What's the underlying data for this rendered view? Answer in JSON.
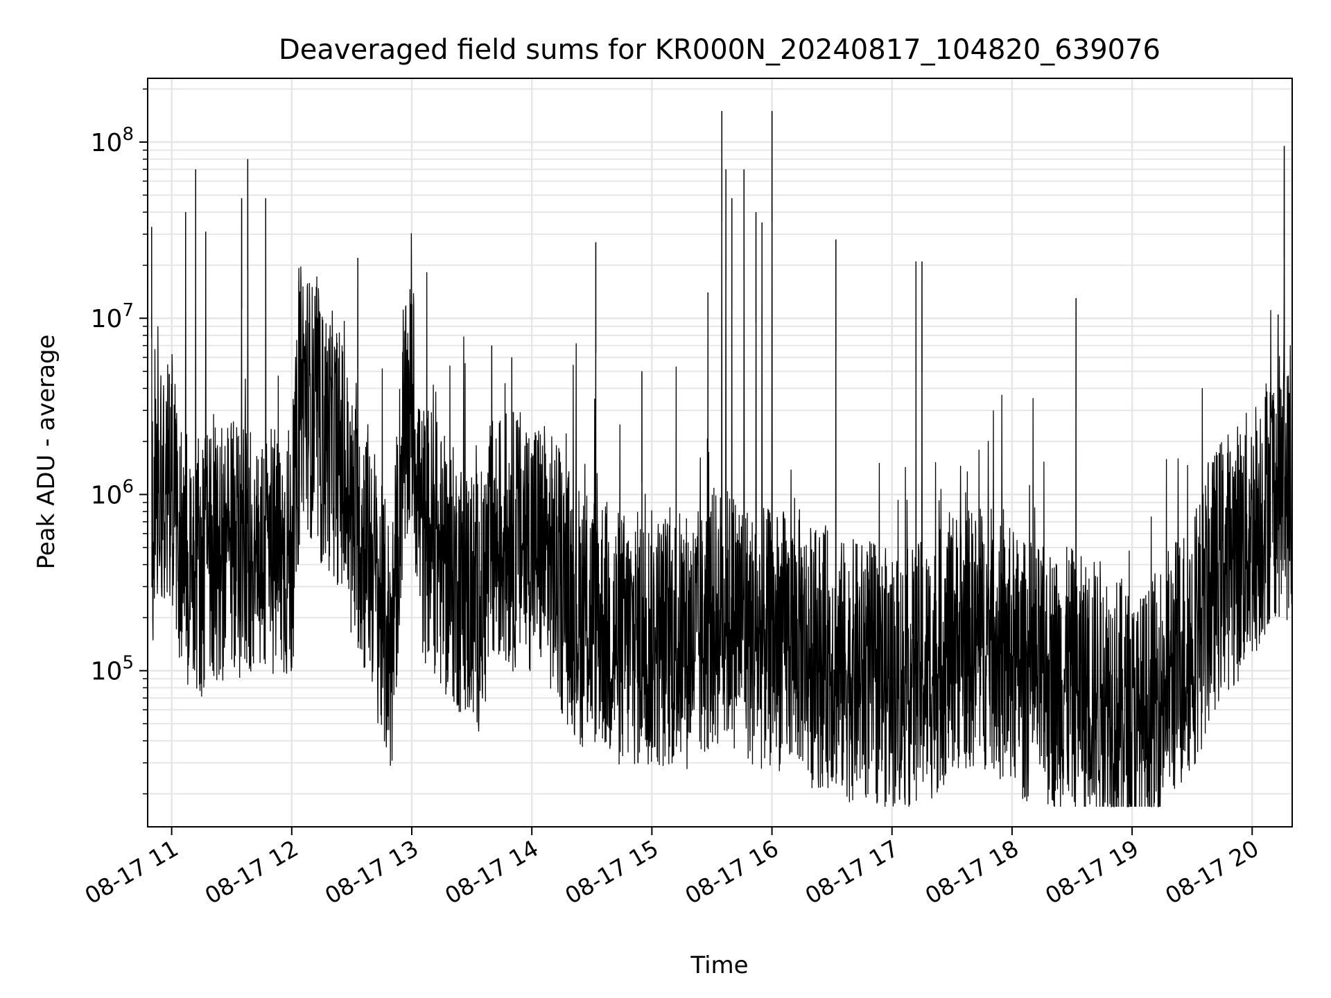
{
  "chart_data": {
    "type": "line",
    "title": "Deaveraged field sums for KR000N_20240817_104820_639076",
    "xlabel": "Time",
    "ylabel": "Peak ADU - average",
    "x_scale": "time",
    "y_scale": "log",
    "xlim": [
      "2024-08-17 10:48",
      "2024-08-17 20:20"
    ],
    "ylim": [
      13000,
      230000000
    ],
    "grid": true,
    "legend": "none",
    "x_ticks": [
      {
        "value": "2024-08-17 11:00",
        "label": "08-17 11"
      },
      {
        "value": "2024-08-17 12:00",
        "label": "08-17 12"
      },
      {
        "value": "2024-08-17 13:00",
        "label": "08-17 13"
      },
      {
        "value": "2024-08-17 14:00",
        "label": "08-17 14"
      },
      {
        "value": "2024-08-17 15:00",
        "label": "08-17 15"
      },
      {
        "value": "2024-08-17 16:00",
        "label": "08-17 16"
      },
      {
        "value": "2024-08-17 17:00",
        "label": "08-17 17"
      },
      {
        "value": "2024-08-17 18:00",
        "label": "08-17 18"
      },
      {
        "value": "2024-08-17 19:00",
        "label": "08-17 19"
      },
      {
        "value": "2024-08-17 20:00",
        "label": "08-17 20"
      }
    ],
    "y_ticks": [
      {
        "value": 100000,
        "base": "10",
        "exp": "5"
      },
      {
        "value": 1000000,
        "base": "10",
        "exp": "6"
      },
      {
        "value": 10000000,
        "base": "10",
        "exp": "7"
      },
      {
        "value": 100000000,
        "base": "10",
        "exp": "8"
      }
    ],
    "series": [
      {
        "color": "#000000",
        "x": [
          "2024-08-17 10:50",
          "2024-08-17 10:55",
          "2024-08-17 11:00",
          "2024-08-17 11:05",
          "2024-08-17 11:10",
          "2024-08-17 11:15",
          "2024-08-17 11:20",
          "2024-08-17 11:25",
          "2024-08-17 11:30",
          "2024-08-17 11:35",
          "2024-08-17 11:40",
          "2024-08-17 11:45",
          "2024-08-17 11:50",
          "2024-08-17 11:55",
          "2024-08-17 12:00",
          "2024-08-17 12:05",
          "2024-08-17 12:10",
          "2024-08-17 12:15",
          "2024-08-17 12:20",
          "2024-08-17 12:25",
          "2024-08-17 12:30",
          "2024-08-17 12:35",
          "2024-08-17 12:40",
          "2024-08-17 12:45",
          "2024-08-17 12:50",
          "2024-08-17 12:55",
          "2024-08-17 13:00",
          "2024-08-17 13:05",
          "2024-08-17 13:10",
          "2024-08-17 13:15",
          "2024-08-17 13:20",
          "2024-08-17 13:25",
          "2024-08-17 13:30",
          "2024-08-17 13:35",
          "2024-08-17 13:40",
          "2024-08-17 13:45",
          "2024-08-17 13:50",
          "2024-08-17 13:55",
          "2024-08-17 14:00",
          "2024-08-17 14:05",
          "2024-08-17 14:10",
          "2024-08-17 14:15",
          "2024-08-17 14:20",
          "2024-08-17 14:25",
          "2024-08-17 14:30",
          "2024-08-17 14:35",
          "2024-08-17 14:40",
          "2024-08-17 14:45",
          "2024-08-17 14:50",
          "2024-08-17 14:55",
          "2024-08-17 15:00",
          "2024-08-17 15:05",
          "2024-08-17 15:10",
          "2024-08-17 15:15",
          "2024-08-17 15:20",
          "2024-08-17 15:25",
          "2024-08-17 15:30",
          "2024-08-17 15:35",
          "2024-08-17 15:40",
          "2024-08-17 15:45",
          "2024-08-17 15:50",
          "2024-08-17 15:55",
          "2024-08-17 16:00",
          "2024-08-17 16:05",
          "2024-08-17 16:10",
          "2024-08-17 16:15",
          "2024-08-17 16:20",
          "2024-08-17 16:25",
          "2024-08-17 16:30",
          "2024-08-17 16:35",
          "2024-08-17 16:40",
          "2024-08-17 16:45",
          "2024-08-17 16:50",
          "2024-08-17 16:55",
          "2024-08-17 17:00",
          "2024-08-17 17:05",
          "2024-08-17 17:10",
          "2024-08-17 17:15",
          "2024-08-17 17:20",
          "2024-08-17 17:25",
          "2024-08-17 17:30",
          "2024-08-17 17:35",
          "2024-08-17 17:40",
          "2024-08-17 17:45",
          "2024-08-17 17:50",
          "2024-08-17 17:55",
          "2024-08-17 18:00",
          "2024-08-17 18:05",
          "2024-08-17 18:10",
          "2024-08-17 18:15",
          "2024-08-17 18:20",
          "2024-08-17 18:25",
          "2024-08-17 18:30",
          "2024-08-17 18:35",
          "2024-08-17 18:40",
          "2024-08-17 18:45",
          "2024-08-17 18:50",
          "2024-08-17 18:55",
          "2024-08-17 19:00",
          "2024-08-17 19:05",
          "2024-08-17 19:10",
          "2024-08-17 19:15",
          "2024-08-17 19:20",
          "2024-08-17 19:25",
          "2024-08-17 19:30",
          "2024-08-17 19:35",
          "2024-08-17 19:40",
          "2024-08-17 19:45",
          "2024-08-17 19:50",
          "2024-08-17 19:55",
          "2024-08-17 20:00",
          "2024-08-17 20:05",
          "2024-08-17 20:10",
          "2024-08-17 20:15",
          "2024-08-17 20:20"
        ],
        "y": [
          600000,
          1400000,
          1300000,
          500000,
          450000,
          400000,
          500000,
          450000,
          500000,
          500000,
          500000,
          450000,
          450000,
          450000,
          450000,
          4500000,
          3000000,
          2000000,
          2000000,
          1500000,
          700000,
          550000,
          450000,
          200000,
          130000,
          1500000,
          3500000,
          600000,
          600000,
          400000,
          350000,
          300000,
          250000,
          250000,
          500000,
          550000,
          550000,
          550000,
          550000,
          500000,
          400000,
          300000,
          250000,
          200000,
          200000,
          200000,
          150000,
          150000,
          150000,
          150000,
          150000,
          150000,
          150000,
          150000,
          150000,
          150000,
          200000,
          200000,
          200000,
          200000,
          150000,
          150000,
          150000,
          150000,
          150000,
          150000,
          120000,
          120000,
          120000,
          100000,
          100000,
          100000,
          100000,
          90000,
          90000,
          90000,
          90000,
          100000,
          100000,
          120000,
          150000,
          150000,
          150000,
          150000,
          150000,
          120000,
          120000,
          100000,
          100000,
          90000,
          90000,
          90000,
          90000,
          80000,
          80000,
          80000,
          70000,
          60000,
          50000,
          50000,
          60000,
          80000,
          100000,
          120000,
          150000,
          200000,
          300000,
          400000,
          450000,
          500000,
          600000,
          800000,
          1100000,
          1100000,
          1000000
        ],
        "spikes": [
          {
            "x": "2024-08-17 10:50",
            "y": 33000000
          },
          {
            "x": "2024-08-17 11:07",
            "y": 40000000
          },
          {
            "x": "2024-08-17 11:12",
            "y": 70000000
          },
          {
            "x": "2024-08-17 11:17",
            "y": 31000000
          },
          {
            "x": "2024-08-17 11:35",
            "y": 48000000
          },
          {
            "x": "2024-08-17 11:38",
            "y": 80000000
          },
          {
            "x": "2024-08-17 11:47",
            "y": 48000000
          },
          {
            "x": "2024-08-17 12:33",
            "y": 22000000
          },
          {
            "x": "2024-08-17 13:00",
            "y": 12000000
          },
          {
            "x": "2024-08-17 13:40",
            "y": 7000000
          },
          {
            "x": "2024-08-17 13:50",
            "y": 6000000
          },
          {
            "x": "2024-08-17 14:32",
            "y": 27000000
          },
          {
            "x": "2024-08-17 14:55",
            "y": 5000000
          },
          {
            "x": "2024-08-17 15:28",
            "y": 14000000
          },
          {
            "x": "2024-08-17 15:35",
            "y": 150000000
          },
          {
            "x": "2024-08-17 15:37",
            "y": 70000000
          },
          {
            "x": "2024-08-17 15:40",
            "y": 48000000
          },
          {
            "x": "2024-08-17 15:46",
            "y": 70000000
          },
          {
            "x": "2024-08-17 15:52",
            "y": 40000000
          },
          {
            "x": "2024-08-17 15:55",
            "y": 35000000
          },
          {
            "x": "2024-08-17 16:00",
            "y": 150000000
          },
          {
            "x": "2024-08-17 16:32",
            "y": 28000000
          },
          {
            "x": "2024-08-17 17:12",
            "y": 21000000
          },
          {
            "x": "2024-08-17 17:15",
            "y": 21000000
          },
          {
            "x": "2024-08-17 18:32",
            "y": 13000000
          },
          {
            "x": "2024-08-17 20:13",
            "y": 10500000
          },
          {
            "x": "2024-08-17 20:16",
            "y": 95000000
          }
        ]
      }
    ]
  }
}
